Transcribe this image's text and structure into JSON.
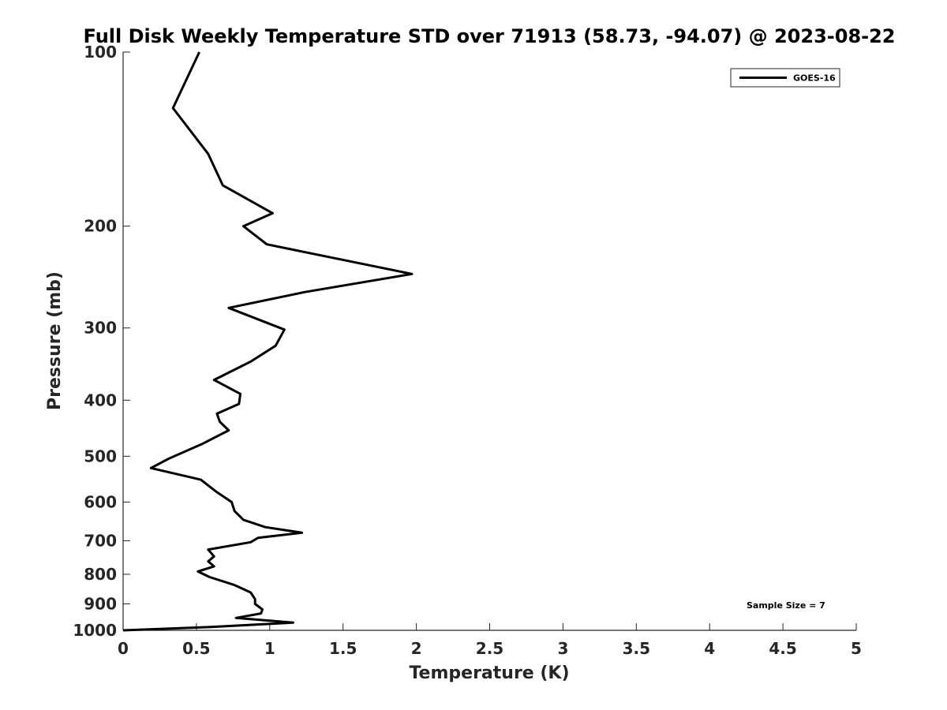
{
  "chart_data": {
    "type": "line",
    "title": "Full Disk Weekly Temperature STD over 71913 (58.73, -94.07) @ 2023-08-22",
    "xlabel": "Temperature (K)",
    "ylabel": "Pressure (mb)",
    "xlim": [
      0,
      5
    ],
    "ylim": [
      100,
      1000
    ],
    "y_scale": "log",
    "y_reversed": true,
    "grid": false,
    "legend_position": "top-right",
    "x_ticks": [
      "0",
      "0.5",
      "1",
      "1.5",
      "2",
      "2.5",
      "3",
      "3.5",
      "4",
      "4.5",
      "5"
    ],
    "y_ticks": [
      "100",
      "200",
      "300",
      "400",
      "500",
      "600",
      "700",
      "800",
      "900",
      "1000"
    ],
    "annotation": "Sample Size = 7",
    "series": [
      {
        "name": "GOES-16",
        "color": "#000000",
        "points": [
          [
            0.52,
            100
          ],
          [
            0.34,
            125
          ],
          [
            0.58,
            150
          ],
          [
            0.68,
            170
          ],
          [
            1.02,
            190
          ],
          [
            0.82,
            200
          ],
          [
            0.98,
            215
          ],
          [
            1.97,
            242
          ],
          [
            1.24,
            260
          ],
          [
            0.72,
            277
          ],
          [
            1.1,
            302
          ],
          [
            1.04,
            322
          ],
          [
            0.87,
            343
          ],
          [
            0.62,
            369
          ],
          [
            0.8,
            390
          ],
          [
            0.79,
            406
          ],
          [
            0.64,
            422
          ],
          [
            0.66,
            436
          ],
          [
            0.72,
            451
          ],
          [
            0.54,
            476
          ],
          [
            0.31,
            505
          ],
          [
            0.19,
            524
          ],
          [
            0.53,
            549
          ],
          [
            0.64,
            577
          ],
          [
            0.74,
            600
          ],
          [
            0.76,
            622
          ],
          [
            0.82,
            644
          ],
          [
            0.97,
            663
          ],
          [
            1.22,
            678
          ],
          [
            0.92,
            692
          ],
          [
            0.87,
            704
          ],
          [
            0.58,
            725
          ],
          [
            0.62,
            745
          ],
          [
            0.58,
            760
          ],
          [
            0.62,
            775
          ],
          [
            0.51,
            791
          ],
          [
            0.59,
            809
          ],
          [
            0.76,
            835
          ],
          [
            0.87,
            860
          ],
          [
            0.9,
            883
          ],
          [
            0.9,
            900
          ],
          [
            0.95,
            920
          ],
          [
            0.94,
            935
          ],
          [
            0.77,
            952
          ],
          [
            1.16,
            970
          ],
          [
            0.6,
            987
          ],
          [
            0.0,
            1000
          ]
        ]
      }
    ]
  }
}
